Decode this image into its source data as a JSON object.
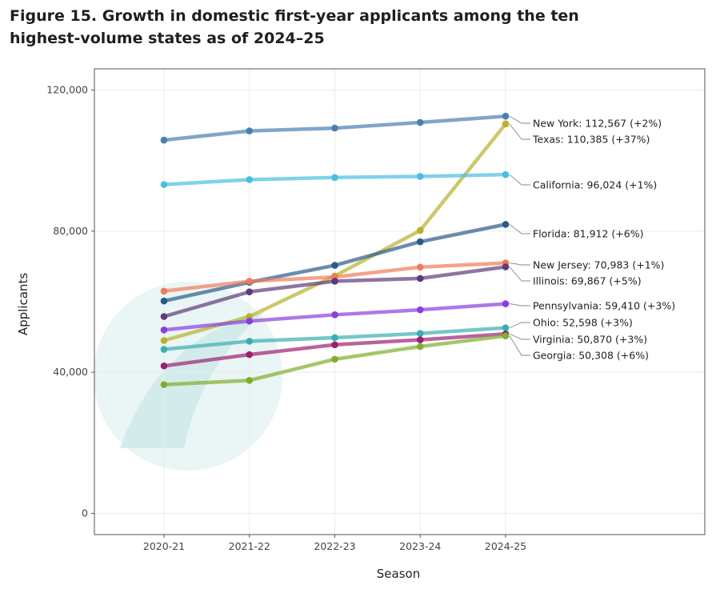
{
  "title": "Figure 15. Growth in domestic first-year applicants among the ten highest-volume states as of 2024–25",
  "chart_data": {
    "type": "line",
    "xlabel": "Season",
    "ylabel": "Applicants",
    "categories": [
      "2020-21",
      "2021-22",
      "2022-23",
      "2023-24",
      "2024-25"
    ],
    "ylim": [
      -6000,
      126000
    ],
    "yticks": [
      0,
      40000,
      80000,
      120000
    ],
    "ytick_labels": [
      "0",
      "40,000",
      "80,000",
      "120,000"
    ],
    "grid": true,
    "legend": "direct labels at line ends",
    "series": [
      {
        "name": "New York",
        "values": [
          105800,
          108400,
          109200,
          110800,
          112567
        ],
        "color": "#4a7fb0",
        "label": "New York: 112,567 (+2%)"
      },
      {
        "name": "Texas",
        "values": [
          49000,
          55800,
          67300,
          80200,
          110385
        ],
        "color": "#b8b02a",
        "label": "Texas: 110,385 (+37%)"
      },
      {
        "name": "California",
        "values": [
          93200,
          94600,
          95200,
          95500,
          96024
        ],
        "color": "#4bbde0",
        "label": "California: 96,024 (+1%)"
      },
      {
        "name": "Florida",
        "values": [
          60200,
          65500,
          70300,
          77000,
          81912
        ],
        "color": "#2a5b87",
        "label": "Florida: 81,912 (+6%)"
      },
      {
        "name": "New Jersey",
        "values": [
          63000,
          65800,
          67000,
          69800,
          70983
        ],
        "color": "#f07a5a",
        "label": "New Jersey: 70,983 (+1%)"
      },
      {
        "name": "Illinois",
        "values": [
          55800,
          62800,
          65800,
          66600,
          69867
        ],
        "color": "#5e3a7a",
        "label": "Illinois: 69,867 (+5%)"
      },
      {
        "name": "Pennsylvania",
        "values": [
          52000,
          54500,
          56300,
          57700,
          59410
        ],
        "color": "#8a3ee0",
        "label": "Pennsylvania: 59,410 (+3%)"
      },
      {
        "name": "Ohio",
        "values": [
          46500,
          48800,
          49800,
          51000,
          52598
        ],
        "color": "#3aaeb0",
        "label": "Ohio: 52,598 (+3%)"
      },
      {
        "name": "Virginia",
        "values": [
          41800,
          45000,
          47800,
          49200,
          50870
        ],
        "color": "#9c1f72",
        "label": "Virginia: 50,870 (+3%)"
      },
      {
        "name": "Georgia",
        "values": [
          36500,
          37700,
          43700,
          47300,
          50308
        ],
        "color": "#7fae2a",
        "label": "Georgia: 50,308 (+6%)"
      }
    ]
  }
}
